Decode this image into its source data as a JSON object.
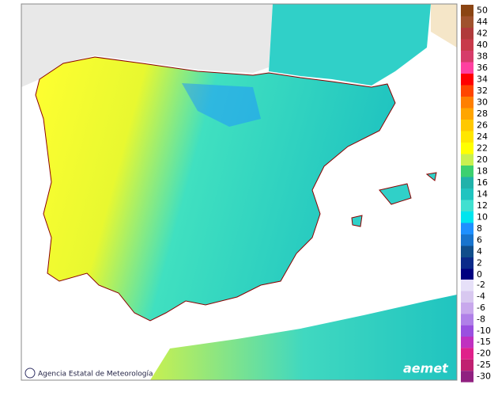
{
  "credit": "Agencia Estatal de Meteorología",
  "logo": "aemet",
  "legend": {
    "upper": [
      {
        "value": 50,
        "color": "#8b4513"
      },
      {
        "value": 44,
        "color": "#a0522d"
      },
      {
        "value": 42,
        "color": "#b03a3a"
      },
      {
        "value": 40,
        "color": "#c83a4a"
      },
      {
        "value": 38,
        "color": "#d63c6a"
      },
      {
        "value": 36,
        "color": "#ff40a0"
      },
      {
        "value": 34,
        "color": "#ff0000"
      },
      {
        "value": 32,
        "color": "#ff4500"
      },
      {
        "value": 30,
        "color": "#ff7f00"
      },
      {
        "value": 28,
        "color": "#ffa500"
      },
      {
        "value": 26,
        "color": "#ffc800"
      },
      {
        "value": 24,
        "color": "#ffe600"
      },
      {
        "value": 22,
        "color": "#ffff00"
      },
      {
        "value": 20,
        "color": "#c8f050"
      },
      {
        "value": 18,
        "color": "#3cd070"
      },
      {
        "value": 16,
        "color": "#20b2aa"
      },
      {
        "value": 14,
        "color": "#20c4c0"
      },
      {
        "value": 12,
        "color": "#40e0d0"
      },
      {
        "value": 10,
        "color": "#00e5ee"
      },
      {
        "value": 8,
        "color": "#1e90ff"
      },
      {
        "value": 6,
        "color": "#1874cd"
      },
      {
        "value": 4,
        "color": "#104e8b"
      },
      {
        "value": 2,
        "color": "#0a2a8a"
      },
      {
        "value": 0,
        "color": "#000080"
      }
    ],
    "lower": [
      {
        "value": -2,
        "color": "#e6e0f8"
      },
      {
        "value": -4,
        "color": "#d8c8f0"
      },
      {
        "value": -6,
        "color": "#c8a8ec"
      },
      {
        "value": -8,
        "color": "#b080e8"
      },
      {
        "value": -10,
        "color": "#9a50e0"
      },
      {
        "value": -15,
        "color": "#c030c0"
      },
      {
        "value": -20,
        "color": "#e0208a"
      },
      {
        "value": -25,
        "color": "#c02070"
      },
      {
        "value": -30,
        "color": "#902080"
      }
    ]
  }
}
